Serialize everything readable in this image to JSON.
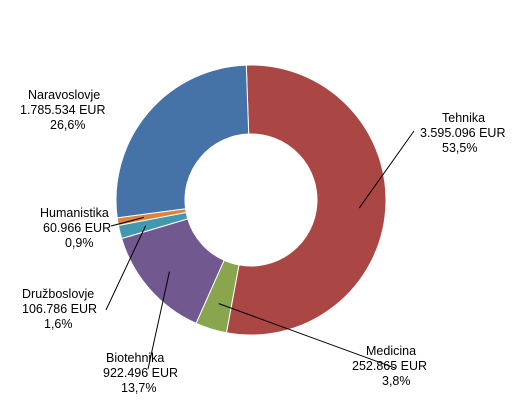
{
  "chart_data": {
    "type": "pie",
    "donut": true,
    "categories": [
      "Tehnika",
      "Medicina",
      "Biotehnika",
      "Družboslovje",
      "Humanistika",
      "Naravoslovje"
    ],
    "values": [
      3595096,
      252865,
      922496,
      106786,
      60966,
      1785534
    ],
    "value_labels": [
      "3.595.096 EUR",
      "252.865 EUR",
      "922.496 EUR",
      "106.786 EUR",
      "60.966 EUR",
      "1.785.534 EUR"
    ],
    "percent_labels": [
      "53,5%",
      "3,8%",
      "13,7%",
      "1,6%",
      "0,9%",
      "26,6%"
    ],
    "colors": [
      "#AA4643",
      "#89A54E",
      "#71588F",
      "#4198AF",
      "#DB843D",
      "#4572A7"
    ],
    "legend": "none"
  }
}
